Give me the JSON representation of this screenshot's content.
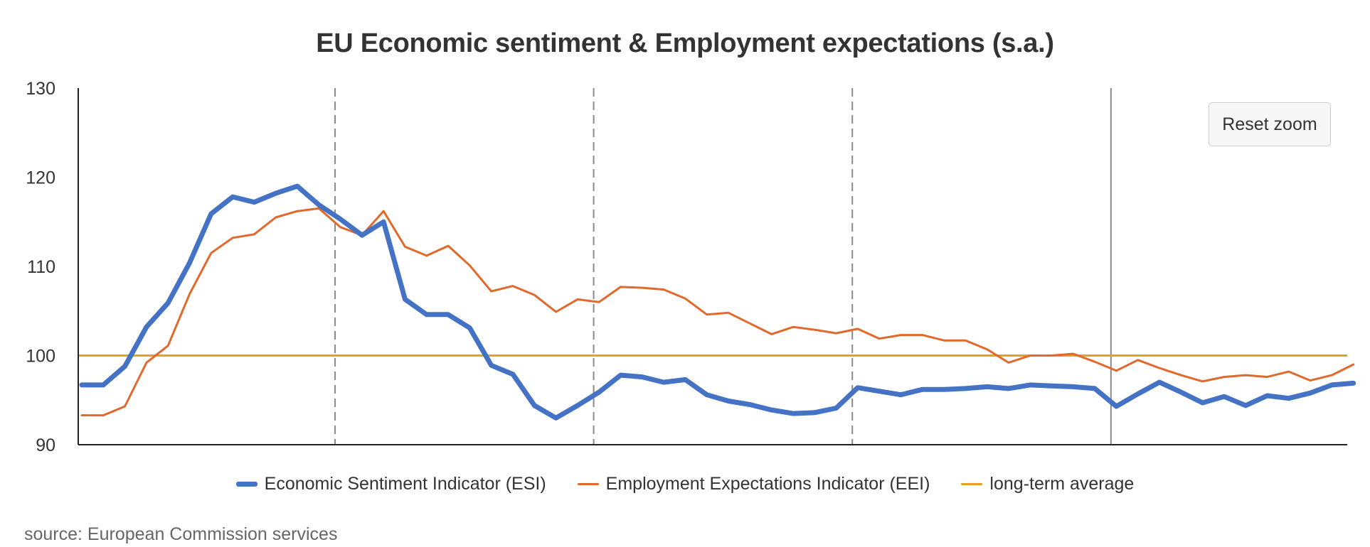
{
  "chart_data": {
    "type": "line",
    "title": "EU Economic sentiment & Employment expectations (s.a.)",
    "ylim": [
      90,
      130
    ],
    "yticks": [
      "90",
      "100",
      "110",
      "120",
      "130"
    ],
    "x_points": 59,
    "vertical_markers": [
      {
        "index": 11.75,
        "style": "dashed"
      },
      {
        "index": 23.75,
        "style": "dashed"
      },
      {
        "index": 35.75,
        "style": "dashed"
      },
      {
        "index": 47.75,
        "style": "solid"
      }
    ],
    "series": [
      {
        "name": "Economic Sentiment Indicator (ESI)",
        "color": "#4472c4",
        "width": 7,
        "values": [
          96.7,
          96.7,
          98.8,
          103.2,
          105.9,
          110.4,
          115.9,
          117.8,
          117.2,
          118.2,
          119.0,
          116.9,
          115.3,
          113.5,
          115.0,
          106.3,
          104.6,
          104.6,
          103.1,
          98.9,
          97.9,
          94.4,
          93.0,
          94.4,
          95.9,
          97.8,
          97.6,
          97.0,
          97.3,
          95.6,
          94.9,
          94.5,
          93.9,
          93.5,
          93.6,
          94.1,
          96.4,
          96.0,
          95.6,
          96.2,
          96.2,
          96.3,
          96.5,
          96.3,
          96.7,
          96.6,
          96.5,
          96.3,
          94.3,
          95.7,
          97.0,
          95.9,
          94.7,
          95.4,
          94.4,
          95.5,
          95.2,
          95.8,
          96.7,
          96.9
        ]
      },
      {
        "name": "Employment Expectations Indicator (EEI)",
        "color": "#e2692c",
        "width": 3,
        "values": [
          93.3,
          93.3,
          94.3,
          99.2,
          101.1,
          106.9,
          111.5,
          113.2,
          113.6,
          115.5,
          116.2,
          116.5,
          114.4,
          113.5,
          116.2,
          112.2,
          111.2,
          112.3,
          110.1,
          107.2,
          107.8,
          106.8,
          104.9,
          106.3,
          106.0,
          107.7,
          107.6,
          107.4,
          106.4,
          104.6,
          104.8,
          103.6,
          102.4,
          103.2,
          102.9,
          102.5,
          103.0,
          101.9,
          102.3,
          102.3,
          101.7,
          101.7,
          100.7,
          99.2,
          100.0,
          100.0,
          100.2,
          99.3,
          98.3,
          99.5,
          98.6,
          97.8,
          97.1,
          97.6,
          97.8,
          97.6,
          98.2,
          97.2,
          97.8,
          99.0
        ]
      },
      {
        "name": "long-term average",
        "color": "#e6a024",
        "width": 3,
        "constant": 100
      }
    ]
  },
  "reset_zoom_label": "Reset zoom",
  "source_text": "source: European Commission services"
}
